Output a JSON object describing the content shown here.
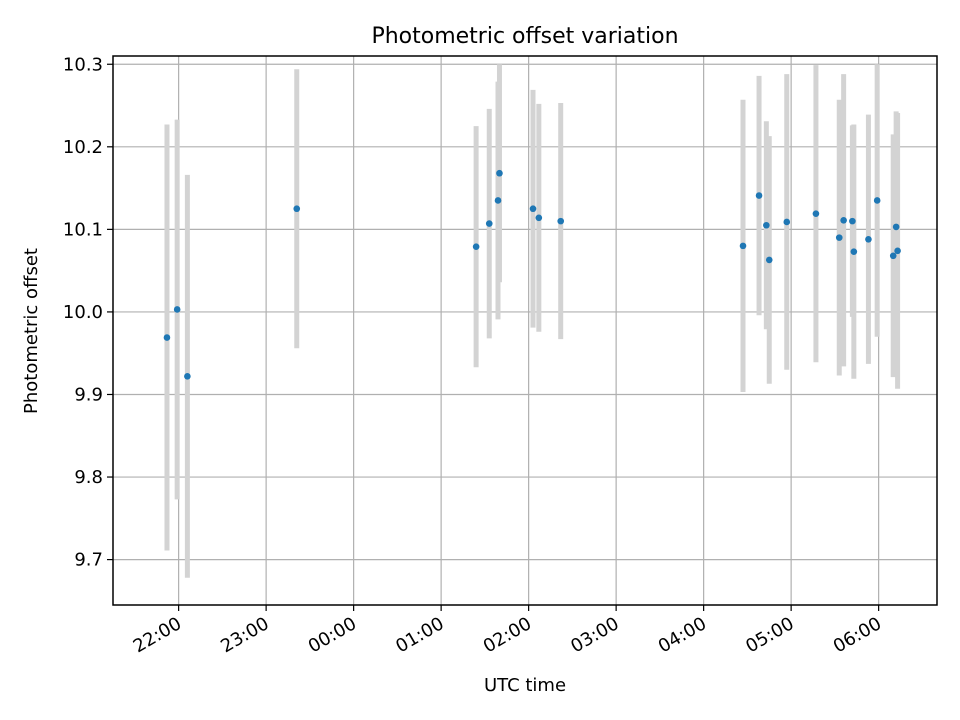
{
  "chart_data": {
    "type": "scatter",
    "title": "Photometric offset variation",
    "xlabel": "UTC time",
    "ylabel": "Photometric offset",
    "x_axis_type": "time",
    "x_start": "21:15",
    "x_end": "06:40",
    "xlim_hours": [
      21.25,
      30.667
    ],
    "ylim": [
      9.645,
      10.31
    ],
    "x_ticks": [
      "22:00",
      "23:00",
      "00:00",
      "01:00",
      "02:00",
      "03:00",
      "04:00",
      "05:00",
      "06:00"
    ],
    "y_ticks": [
      "9.7",
      "9.8",
      "9.9",
      "10.0",
      "10.1",
      "10.2",
      "10.3"
    ],
    "grid": true,
    "marker_color": "#1f77b4",
    "errorbar_color": "#d3d3d3",
    "points": [
      {
        "t": "21:52",
        "y": 9.969,
        "err": 0.258
      },
      {
        "t": "21:59",
        "y": 10.003,
        "err": 0.23
      },
      {
        "t": "22:06",
        "y": 9.922,
        "err": 0.244
      },
      {
        "t": "23:21",
        "y": 10.125,
        "err": 0.169
      },
      {
        "t": "01:24",
        "y": 10.079,
        "err": 0.146
      },
      {
        "t": "01:33",
        "y": 10.107,
        "err": 0.139
      },
      {
        "t": "01:39",
        "y": 10.135,
        "err": 0.144
      },
      {
        "t": "01:40",
        "y": 10.168,
        "err": 0.132
      },
      {
        "t": "02:03",
        "y": 10.125,
        "err": 0.144
      },
      {
        "t": "02:07",
        "y": 10.114,
        "err": 0.138
      },
      {
        "t": "02:22",
        "y": 10.11,
        "err": 0.143
      },
      {
        "t": "04:27",
        "y": 10.08,
        "err": 0.177
      },
      {
        "t": "04:38",
        "y": 10.141,
        "err": 0.145
      },
      {
        "t": "04:43",
        "y": 10.105,
        "err": 0.126
      },
      {
        "t": "04:45",
        "y": 10.063,
        "err": 0.15
      },
      {
        "t": "04:57",
        "y": 10.109,
        "err": 0.179
      },
      {
        "t": "05:17",
        "y": 10.119,
        "err": 0.18
      },
      {
        "t": "05:33",
        "y": 10.09,
        "err": 0.167
      },
      {
        "t": "05:36",
        "y": 10.111,
        "err": 0.177
      },
      {
        "t": "05:42",
        "y": 10.11,
        "err": 0.116
      },
      {
        "t": "05:43",
        "y": 10.073,
        "err": 0.154
      },
      {
        "t": "05:53",
        "y": 10.088,
        "err": 0.151
      },
      {
        "t": "05:59",
        "y": 10.135,
        "err": 0.165
      },
      {
        "t": "06:10",
        "y": 10.068,
        "err": 0.147
      },
      {
        "t": "06:12",
        "y": 10.103,
        "err": 0.14
      },
      {
        "t": "06:13",
        "y": 10.074,
        "err": 0.167
      }
    ]
  }
}
